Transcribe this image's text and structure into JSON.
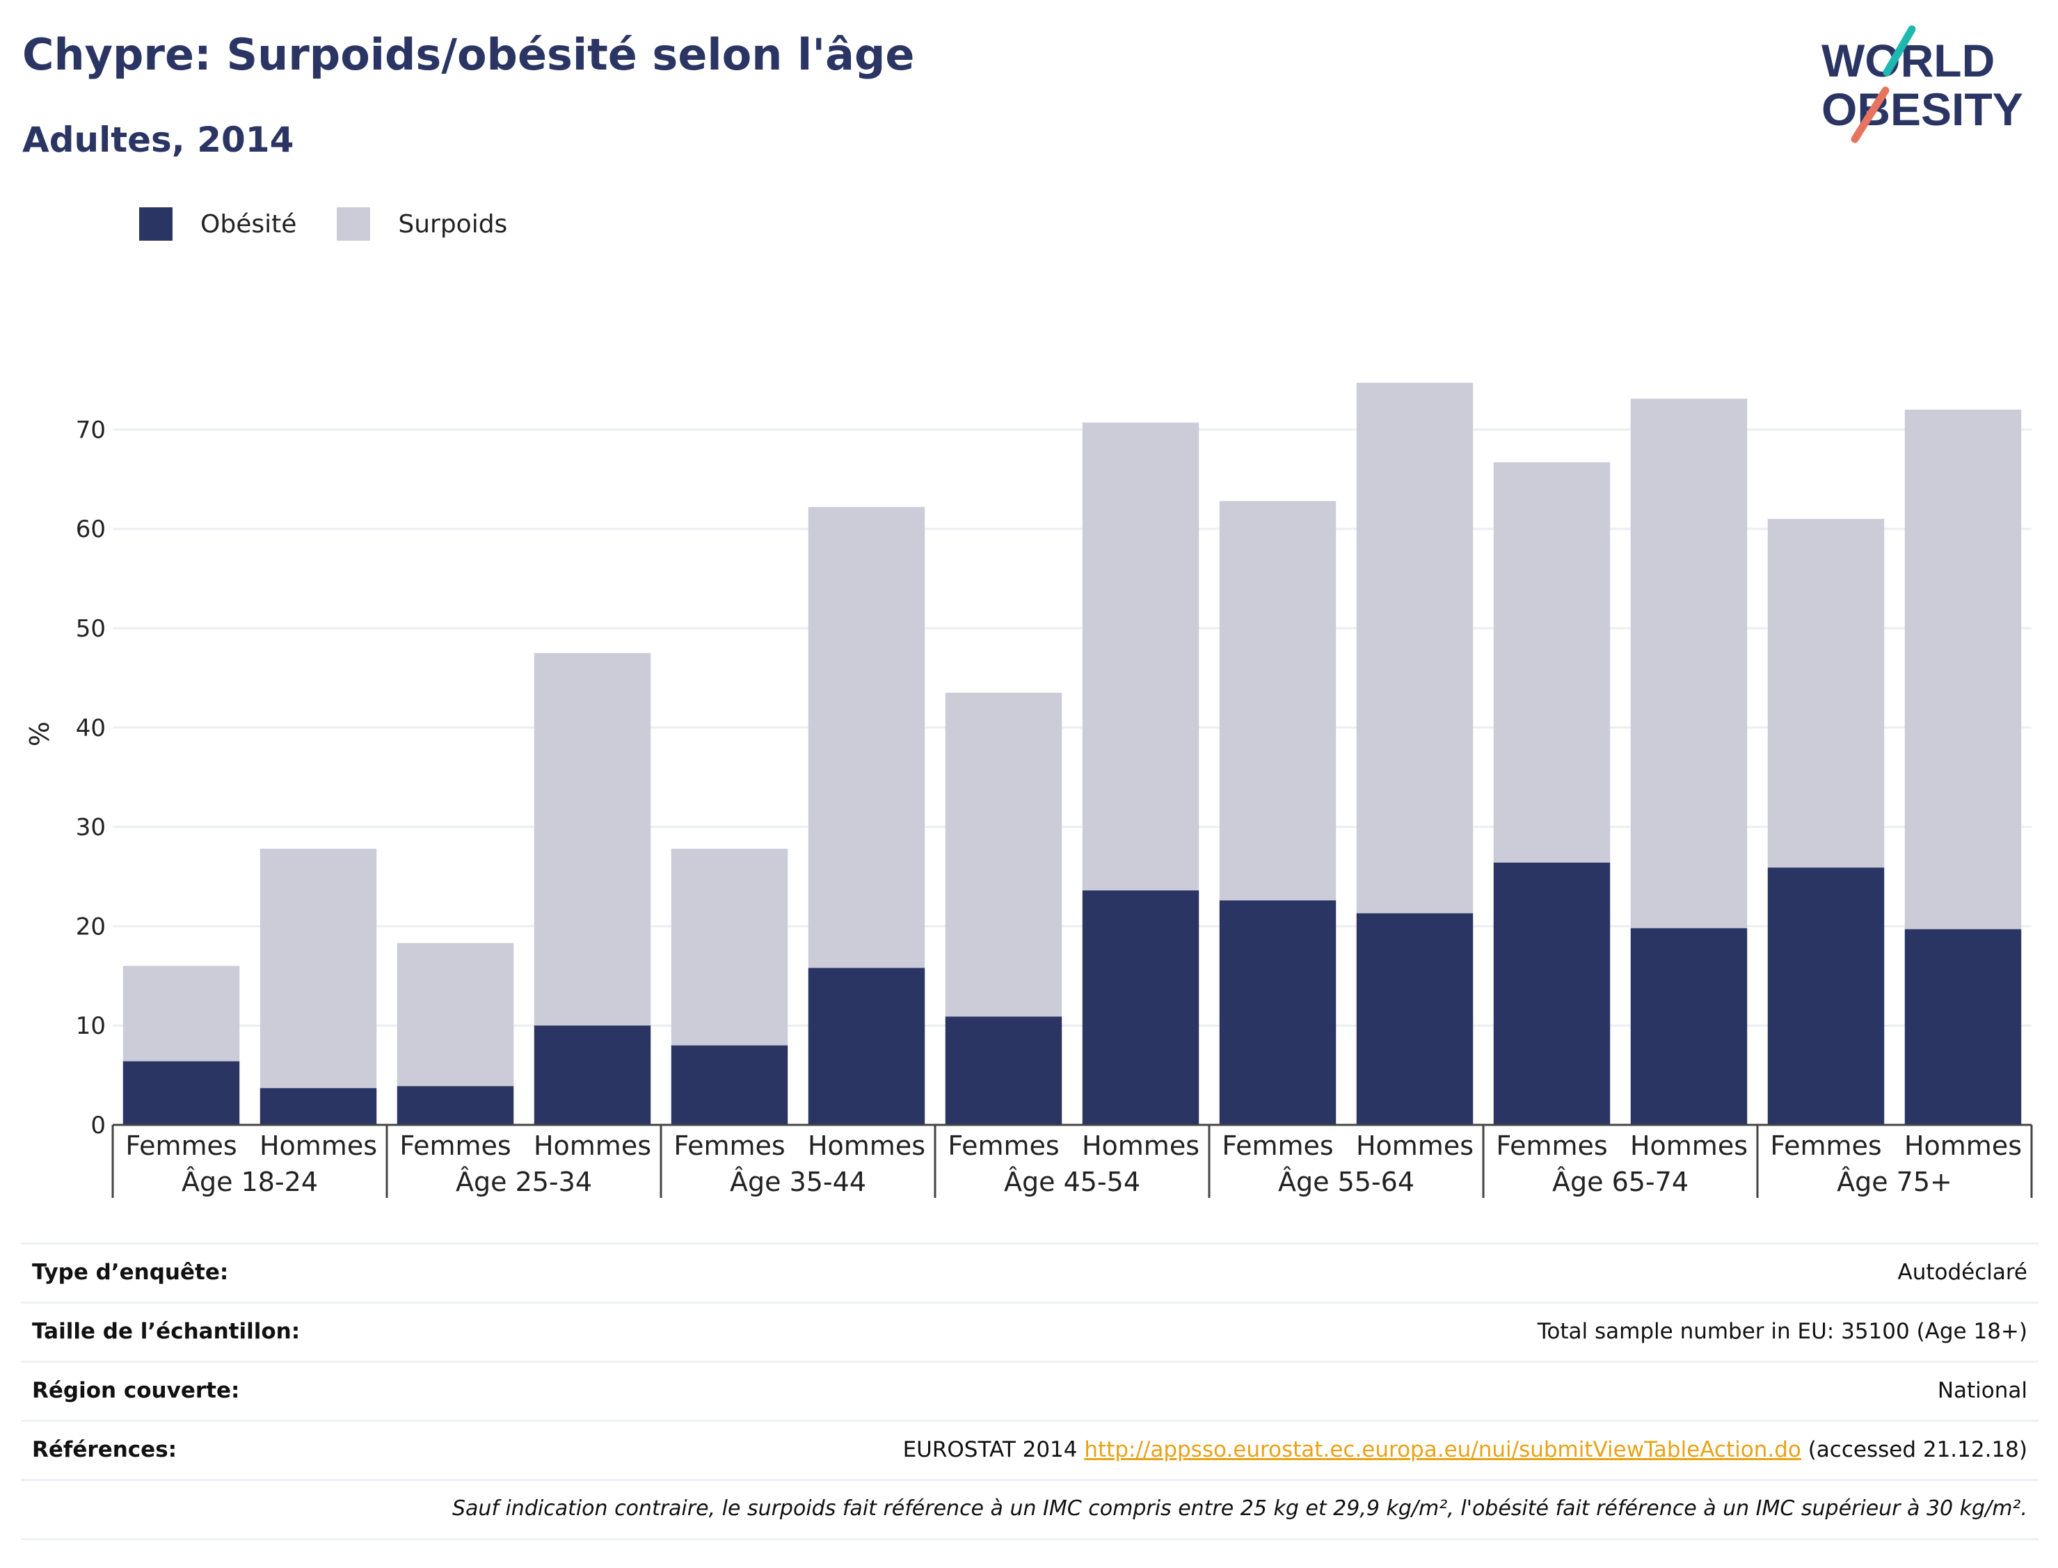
{
  "header": {
    "title": "Chypre: Surpoids/obésité selon l'âge",
    "subtitle": "Adultes, 2014"
  },
  "logo": {
    "line1": "WORLD",
    "line2": "OBESITY",
    "colors": {
      "text": "#2a3563",
      "slash_teal": "#1fb8b0",
      "slash_coral": "#e8735e"
    }
  },
  "legend": [
    {
      "label": "Obésité",
      "color": "#2a3563"
    },
    {
      "label": "Surpoids",
      "color": "#cbccd8"
    }
  ],
  "chart_data": {
    "type": "bar",
    "stacked": true,
    "ylabel": "%",
    "ylim": [
      0,
      80
    ],
    "yticks": [
      0,
      10,
      20,
      30,
      40,
      50,
      60,
      70
    ],
    "grid": true,
    "legend_position": "top-left",
    "groups": [
      "Âge 18-24",
      "Âge 25-34",
      "Âge 35-44",
      "Âge 45-54",
      "Âge 55-64",
      "Âge 65-74",
      "Âge 75+"
    ],
    "sexes": [
      "Femmes",
      "Hommes"
    ],
    "series": [
      {
        "name": "Obésité",
        "color": "#2a3563",
        "values": [
          6.4,
          3.7,
          3.9,
          10.0,
          8.0,
          15.8,
          10.9,
          23.6,
          22.6,
          21.3,
          26.4,
          19.8,
          25.9,
          19.7
        ]
      },
      {
        "name": "Surpoids",
        "color": "#cbccd8",
        "values": [
          9.6,
          24.1,
          14.4,
          37.5,
          19.8,
          46.4,
          32.6,
          47.1,
          40.2,
          53.4,
          40.3,
          53.3,
          35.1,
          52.3
        ]
      }
    ]
  },
  "info": {
    "survey_type": {
      "label": "Type d’enquête:",
      "value": "Autodéclaré"
    },
    "sample_size": {
      "label": "Taille de l’échantillon:",
      "value": "Total sample number in EU: 35100 (Age 18+)"
    },
    "region": {
      "label": "Région couverte:",
      "value": "National"
    },
    "references": {
      "label": "Références:",
      "prefix": "EUROSTAT 2014 ",
      "link": "http://appsso.eurostat.ec.europa.eu/nui/submitViewTableAction.do",
      "suffix": " (accessed 21.12.18)"
    },
    "note": "Sauf indication contraire, le surpoids fait référence à un IMC compris entre 25 kg et 29,9 kg/m², l'obésité fait référence à un IMC supérieur à 30 kg/m²."
  }
}
